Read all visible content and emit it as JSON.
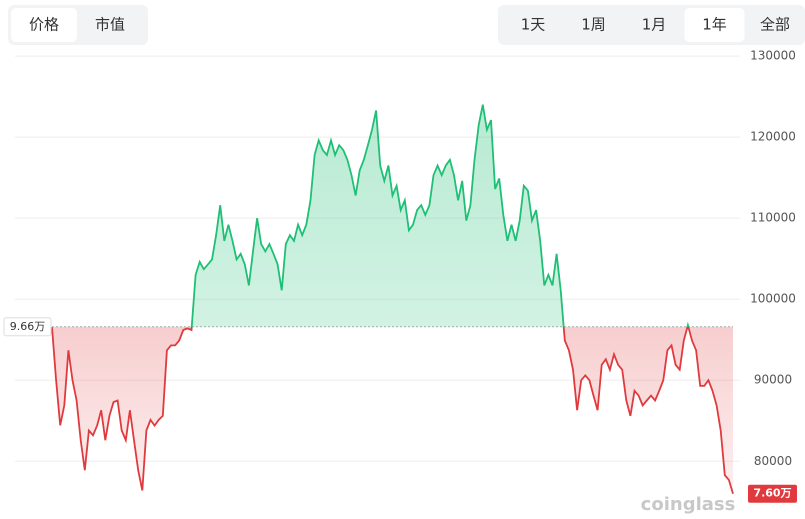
{
  "ui": {
    "left_tabs": [
      "价格",
      "市值"
    ],
    "left_selected": 0,
    "right_tabs": [
      "1天",
      "1周",
      "1月",
      "1年",
      "全部"
    ],
    "right_selected": 3,
    "watermark": "coinglass"
  },
  "chart_data": {
    "type": "line",
    "values": [
      96540,
      90000,
      84440,
      86900,
      93700,
      90000,
      87500,
      82600,
      78900,
      83800,
      83200,
      84400,
      86300,
      82600,
      85600,
      87300,
      87500,
      83800,
      82600,
      86300,
      82600,
      78900,
      76400,
      83800,
      85100,
      84400,
      85100,
      85600,
      93700,
      94300,
      94300,
      94900,
      96200,
      96400,
      96200,
      103000,
      104600,
      103700,
      104300,
      104900,
      107900,
      111600,
      107200,
      109200,
      107200,
      104900,
      105600,
      104300,
      101700,
      105900,
      110000,
      106800,
      105900,
      106800,
      105600,
      104300,
      101100,
      106800,
      107900,
      107200,
      109200,
      107900,
      109200,
      112200,
      117800,
      119600,
      118400,
      117800,
      119600,
      117800,
      119000,
      118400,
      117200,
      115300,
      112800,
      115900,
      117200,
      119000,
      120900,
      123300,
      116500,
      114600,
      116500,
      112800,
      114000,
      111000,
      112200,
      108500,
      109200,
      111000,
      111600,
      110400,
      111600,
      115300,
      116500,
      115300,
      116500,
      117200,
      115300,
      112200,
      114600,
      109700,
      111600,
      117200,
      121500,
      124000,
      120900,
      122100,
      113600,
      114900,
      110400,
      107200,
      109200,
      107200,
      109700,
      114000,
      113400,
      109700,
      111000,
      107200,
      101700,
      103000,
      101700,
      105600,
      101100,
      94900,
      93700,
      91300,
      86300,
      90000,
      90600,
      90000,
      88100,
      86300,
      91900,
      92600,
      91300,
      93200,
      91900,
      91300,
      87500,
      85600,
      88700,
      88100,
      86900,
      87500,
      88100,
      87500,
      88700,
      90000,
      93700,
      94300,
      91900,
      91300,
      94900,
      96800,
      94900,
      93700,
      89300,
      89300,
      90000,
      88700,
      86900,
      83800,
      78300,
      77700,
      76000
    ],
    "up_color": "#1fbf75",
    "down_color": "#e03a3e",
    "baseline": {
      "value": 96600,
      "label": "9.66万"
    },
    "last_label": {
      "value": 76000,
      "label": "7.60万"
    },
    "ylim": [
      73000,
      131000
    ],
    "yticks": [
      80000,
      90000,
      100000,
      110000,
      120000,
      130000
    ],
    "grid": true
  }
}
